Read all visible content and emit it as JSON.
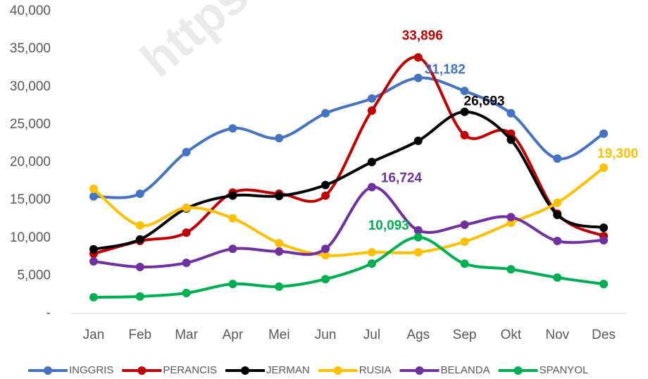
{
  "chart_data": {
    "type": "line",
    "watermark": "https://",
    "categories": [
      "Jan",
      "Feb",
      "Mar",
      "Apr",
      "Mei",
      "Jun",
      "Jul",
      "Ags",
      "Sep",
      "Okt",
      "Nov",
      "Des"
    ],
    "ylim": [
      0,
      40000
    ],
    "yticks": [
      {
        "value": 0,
        "label": "-"
      },
      {
        "value": 5000,
        "label": "5,000"
      },
      {
        "value": 10000,
        "label": "10,000"
      },
      {
        "value": 15000,
        "label": "15,000"
      },
      {
        "value": 20000,
        "label": "20,000"
      },
      {
        "value": 25000,
        "label": "25,000"
      },
      {
        "value": 30000,
        "label": "30,000"
      },
      {
        "value": 35000,
        "label": "35,000"
      },
      {
        "value": 40000,
        "label": "40,000"
      }
    ],
    "grid": false,
    "legend": "bottom",
    "series": [
      {
        "name": "INGGRIS",
        "color": "#4472c4",
        "values": [
          15500,
          15850,
          21350,
          24500,
          23200,
          26500,
          28450,
          31182,
          29450,
          26500,
          20500,
          23800
        ],
        "value_labels": [
          null,
          null,
          null,
          null,
          null,
          null,
          null,
          "31,182",
          null,
          null,
          null,
          null
        ]
      },
      {
        "name": "PERANCIS",
        "color": "#c00000",
        "values": [
          7900,
          9600,
          10700,
          16000,
          15850,
          15600,
          26850,
          33896,
          23600,
          23800,
          13200,
          10250
        ],
        "value_labels": [
          null,
          null,
          null,
          null,
          null,
          null,
          null,
          "33,896",
          null,
          null,
          null,
          null
        ]
      },
      {
        "name": "JERMAN",
        "color": "#000000",
        "values": [
          8500,
          9800,
          13900,
          15600,
          15550,
          17000,
          20050,
          22850,
          26693,
          23000,
          13050,
          11350
        ],
        "value_labels": [
          null,
          null,
          null,
          null,
          null,
          null,
          null,
          null,
          "26,693",
          null,
          null,
          null
        ]
      },
      {
        "name": "RUSIA",
        "color": "#ffc000",
        "values": [
          16500,
          11650,
          14000,
          12600,
          9300,
          7700,
          8100,
          8100,
          9500,
          12000,
          14650,
          19300
        ],
        "value_labels": [
          null,
          null,
          null,
          null,
          null,
          null,
          null,
          null,
          null,
          null,
          null,
          "19,300"
        ]
      },
      {
        "name": "BELANDA",
        "color": "#7030a0",
        "values": [
          6900,
          6150,
          6700,
          8550,
          8200,
          8550,
          16724,
          11000,
          11750,
          12750,
          9600,
          9700
        ],
        "value_labels": [
          null,
          null,
          null,
          null,
          null,
          null,
          "16,724",
          null,
          null,
          null,
          null,
          null
        ]
      },
      {
        "name": "SPANYOL",
        "color": "#00b050",
        "values": [
          2150,
          2250,
          2700,
          3900,
          3550,
          4550,
          6600,
          10093,
          6600,
          5850,
          4750,
          3900
        ],
        "value_labels": [
          null,
          null,
          null,
          null,
          null,
          null,
          null,
          "10,093",
          null,
          null,
          null,
          null
        ]
      }
    ]
  }
}
